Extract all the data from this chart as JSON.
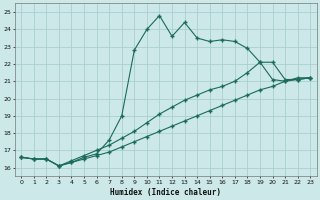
{
  "xlabel": "Humidex (Indice chaleur)",
  "bg_color": "#cce8e8",
  "grid_color": "#aacfcf",
  "line_color": "#1a6b5a",
  "xlim": [
    -0.5,
    23.5
  ],
  "ylim": [
    15.5,
    25.5
  ],
  "xticks": [
    0,
    1,
    2,
    3,
    4,
    5,
    6,
    7,
    8,
    9,
    10,
    11,
    12,
    13,
    14,
    15,
    16,
    17,
    18,
    19,
    20,
    21,
    22,
    23
  ],
  "yticks": [
    16,
    17,
    18,
    19,
    20,
    21,
    22,
    23,
    24,
    25
  ],
  "line1_x": [
    0,
    1,
    2,
    3,
    4,
    5,
    6,
    7,
    8,
    9,
    10,
    11,
    12,
    13,
    14,
    15,
    16,
    17,
    18,
    19,
    20,
    21,
    22,
    23
  ],
  "line1_y": [
    16.6,
    16.5,
    16.5,
    16.1,
    16.3,
    16.6,
    16.8,
    17.6,
    19.0,
    22.8,
    24.0,
    24.8,
    23.6,
    24.4,
    23.5,
    23.3,
    23.4,
    23.3,
    22.9,
    22.1,
    21.1,
    21.0,
    21.2,
    21.2
  ],
  "line2_x": [
    0,
    1,
    2,
    3,
    4,
    5,
    6,
    7,
    8,
    9,
    10,
    11,
    12,
    13,
    14,
    15,
    16,
    17,
    18,
    19,
    20,
    21,
    22,
    23
  ],
  "line2_y": [
    16.6,
    16.5,
    16.5,
    16.1,
    16.4,
    16.7,
    17.0,
    17.3,
    17.7,
    18.1,
    18.6,
    19.1,
    19.5,
    19.9,
    20.2,
    20.5,
    20.7,
    21.0,
    21.5,
    22.1,
    22.1,
    21.1,
    21.1,
    21.2
  ],
  "line3_x": [
    0,
    1,
    2,
    3,
    4,
    5,
    6,
    7,
    8,
    9,
    10,
    11,
    12,
    13,
    14,
    15,
    16,
    17,
    18,
    19,
    20,
    21,
    22,
    23
  ],
  "line3_y": [
    16.6,
    16.5,
    16.5,
    16.1,
    16.3,
    16.5,
    16.7,
    16.9,
    17.2,
    17.5,
    17.8,
    18.1,
    18.4,
    18.7,
    19.0,
    19.3,
    19.6,
    19.9,
    20.2,
    20.5,
    20.7,
    21.0,
    21.1,
    21.2
  ]
}
